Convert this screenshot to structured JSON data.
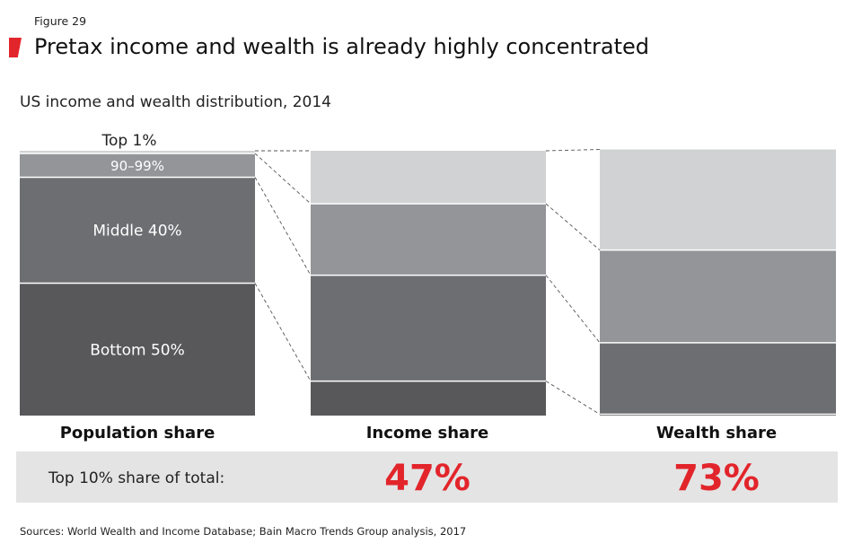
{
  "figure_label": "Figure 29",
  "title": "Pretax income and wealth is already highly concentrated",
  "subtitle": "US income and wealth distribution, 2014",
  "colors": {
    "accent": "#e2252b",
    "segments": {
      "bottom": "#58585a",
      "middle": "#6d6e71",
      "upper": "#939598",
      "top": "#d1d2d4"
    },
    "share_box": "#e4e4e5"
  },
  "chart_data": {
    "type": "bar",
    "stacked": true,
    "categories": [
      "Population share",
      "Income share",
      "Wealth share"
    ],
    "ylim": [
      0,
      100
    ],
    "segments": [
      {
        "name": "Bottom 50%",
        "values": [
          50,
          13,
          0.5
        ]
      },
      {
        "name": "Middle 40%",
        "values": [
          40,
          40,
          27
        ]
      },
      {
        "name": "90–99%",
        "values": [
          9,
          27,
          35
        ]
      },
      {
        "name": "Top 1%",
        "values": [
          1,
          20,
          38
        ]
      }
    ],
    "segment_labels": [
      "Bottom 50%",
      "Middle 40%",
      "90–99%",
      "Top 1%"
    ]
  },
  "share_row": {
    "label": "Top 10% share of total:",
    "income_value": "47%",
    "wealth_value": "73%"
  },
  "source": "Sources: World Wealth and Income Database; Bain Macro Trends Group analysis, 2017"
}
